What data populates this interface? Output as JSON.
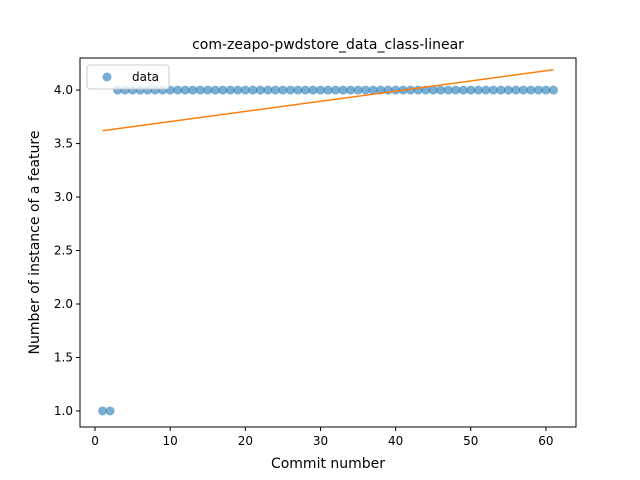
{
  "chart_data": {
    "type": "scatter",
    "title": "com-zeapo-pwdstore_data_class-linear",
    "xlabel": "Commit number",
    "ylabel": "Number of instance of a feature",
    "xlim": [
      -2,
      64
    ],
    "ylim": [
      0.85,
      4.3
    ],
    "xticks": [
      0,
      10,
      20,
      30,
      40,
      50,
      60
    ],
    "yticks": [
      1.0,
      1.5,
      2.0,
      2.5,
      3.0,
      3.5,
      4.0
    ],
    "ytick_labels": [
      "1.0",
      "1.5",
      "2.0",
      "2.5",
      "3.0",
      "3.5",
      "4.0"
    ],
    "grid": false,
    "legend": {
      "placement": "top-left",
      "entries": [
        "data"
      ]
    },
    "colors": {
      "data": "#1f77b4",
      "fit": "#ff7f0e"
    },
    "series": [
      {
        "name": "data",
        "kind": "scatter",
        "x": [
          1,
          2,
          3,
          4,
          5,
          6,
          7,
          8,
          9,
          10,
          11,
          12,
          13,
          14,
          15,
          16,
          17,
          18,
          19,
          20,
          21,
          22,
          23,
          24,
          25,
          26,
          27,
          28,
          29,
          30,
          31,
          32,
          33,
          34,
          35,
          36,
          37,
          38,
          39,
          40,
          41,
          42,
          43,
          44,
          45,
          46,
          47,
          48,
          49,
          50,
          51,
          52,
          53,
          54,
          55,
          56,
          57,
          58,
          59,
          60,
          61
        ],
        "y": [
          1,
          1,
          4,
          4,
          4,
          4,
          4,
          4,
          4,
          4,
          4,
          4,
          4,
          4,
          4,
          4,
          4,
          4,
          4,
          4,
          4,
          4,
          4,
          4,
          4,
          4,
          4,
          4,
          4,
          4,
          4,
          4,
          4,
          4,
          4,
          4,
          4,
          4,
          4,
          4,
          4,
          4,
          4,
          4,
          4,
          4,
          4,
          4,
          4,
          4,
          4,
          4,
          4,
          4,
          4,
          4,
          4,
          4,
          4,
          4,
          4
        ]
      },
      {
        "kind": "line",
        "x": [
          1,
          61
        ],
        "y": [
          3.62,
          4.19
        ]
      }
    ]
  }
}
